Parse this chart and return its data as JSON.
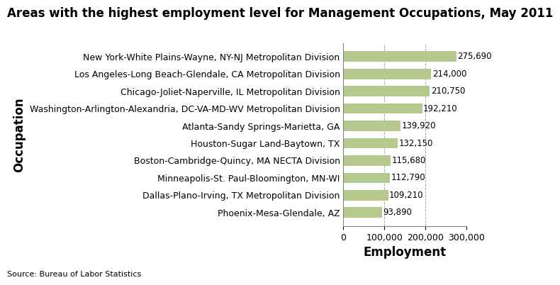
{
  "title": "Areas with the highest employment level for Management Occupations, May 2011",
  "categories": [
    "Phoenix-Mesa-Glendale, AZ",
    "Dallas-Plano-Irving, TX Metropolitan Division",
    "Minneapolis-St. Paul-Bloomington, MN-WI",
    "Boston-Cambridge-Quincy, MA NECTA Division",
    "Houston-Sugar Land-Baytown, TX",
    "Atlanta-Sandy Springs-Marietta, GA",
    "Washington-Arlington-Alexandria, DC-VA-MD-WV Metropolitan Division",
    "Chicago-Joliet-Naperville, IL Metropolitan Division",
    "Los Angeles-Long Beach-Glendale, CA Metropolitan Division",
    "New York-White Plains-Wayne, NY-NJ Metropolitan Division"
  ],
  "values": [
    93890,
    109210,
    112790,
    115680,
    132150,
    139920,
    192210,
    210750,
    214000,
    275690
  ],
  "bar_color": "#b5c98e",
  "xlabel": "Employment",
  "ylabel": "Occupation",
  "xlim": [
    0,
    300000
  ],
  "xticks": [
    0,
    100000,
    200000,
    300000
  ],
  "source": "Source: Bureau of Labor Statistics",
  "title_fontsize": 12,
  "label_fontsize": 10,
  "tick_fontsize": 9,
  "value_fontsize": 8.5,
  "bg_color": "#f5f5f5"
}
